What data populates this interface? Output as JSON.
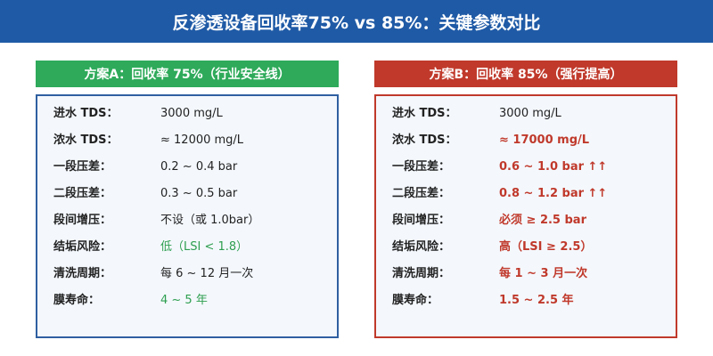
{
  "header": {
    "title": "反渗透设备回收率75% vs 85%：关键参数对比"
  },
  "panels": [
    {
      "title": "方案A：回收率 75%（行业安全线）",
      "color": "#2eaa5a",
      "border": "#2f5fa0",
      "rows": [
        {
          "label": "进水 TDS：",
          "value": "3000 mg/L"
        },
        {
          "label": "浓水 TDS：",
          "value": "≈ 12000 mg/L"
        },
        {
          "label": "一段压差：",
          "value": "0.2 ~ 0.4 bar"
        },
        {
          "label": "二段压差：",
          "value": "0.3 ~ 0.5 bar"
        },
        {
          "label": "段间增压：",
          "value": "不设（或 1.0bar）"
        },
        {
          "label": "结垢风险：",
          "value": "低（LSI < 1.8）",
          "color": "#2e9e4f"
        },
        {
          "label": "清洗周期：",
          "value": "每 6 ~ 12 月一次"
        },
        {
          "label": "膜寿命：",
          "value": "4 ~ 5 年",
          "color": "#2e9e4f"
        }
      ]
    },
    {
      "title": "方案B：回收率 85%（强行提高）",
      "color": "#c0392b",
      "border": "#c0392b",
      "rows": [
        {
          "label": "进水 TDS：",
          "value": "3000 mg/L"
        },
        {
          "label": "浓水 TDS：",
          "value": "≈ 17000 mg/L",
          "color": "#c0392b"
        },
        {
          "label": "一段压差：",
          "value": "0.6 ~ 1.0 bar ↑↑",
          "color": "#c0392b"
        },
        {
          "label": "二段压差：",
          "value": "0.8 ~ 1.2 bar ↑↑",
          "color": "#c0392b"
        },
        {
          "label": "段间增压：",
          "value": "必须 ≥ 2.5 bar",
          "color": "#c0392b"
        },
        {
          "label": "结垢风险：",
          "value": "高（LSI ≥ 2.5）",
          "color": "#c0392b"
        },
        {
          "label": "清洗周期：",
          "value": "每 1 ~ 3 月一次",
          "color": "#c0392b"
        },
        {
          "label": "膜寿命：",
          "value": "1.5 ~ 2.5 年",
          "color": "#c0392b"
        }
      ]
    }
  ]
}
